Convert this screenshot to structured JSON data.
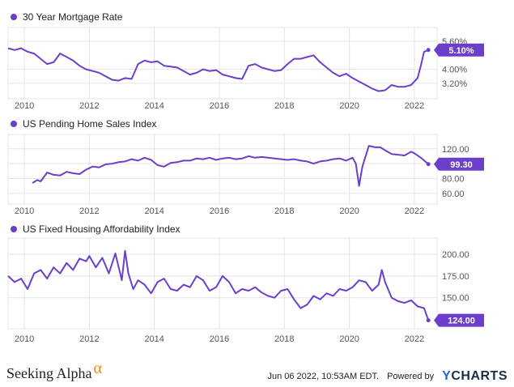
{
  "colors": {
    "series": "#6b3fc9",
    "grid": "#e4e4e4",
    "axis_text": "#555555",
    "badge_text": "#ffffff"
  },
  "chart_data": [
    {
      "type": "line",
      "legend": "30 Year Mortgage Rate",
      "current_label": "5.10%",
      "y_ticks": [
        "5.60%",
        "4.00%",
        "3.20%"
      ],
      "y_tick_values": [
        5.6,
        4.0,
        3.2
      ],
      "ylim": [
        2.5,
        6.2
      ],
      "x_ticks": [
        "2010",
        "2012",
        "2014",
        "2016",
        "2018",
        "2020",
        "2022"
      ],
      "x": [
        2009.5,
        2009.7,
        2009.9,
        2010.1,
        2010.3,
        2010.5,
        2010.7,
        2010.9,
        2011.1,
        2011.3,
        2011.5,
        2011.7,
        2011.9,
        2012.1,
        2012.3,
        2012.5,
        2012.7,
        2012.9,
        2013.1,
        2013.3,
        2013.5,
        2013.7,
        2013.9,
        2014.1,
        2014.3,
        2014.5,
        2014.7,
        2014.9,
        2015.1,
        2015.3,
        2015.5,
        2015.7,
        2015.9,
        2016.1,
        2016.3,
        2016.5,
        2016.7,
        2016.9,
        2017.1,
        2017.3,
        2017.5,
        2017.7,
        2017.9,
        2018.1,
        2018.3,
        2018.5,
        2018.7,
        2018.9,
        2019.1,
        2019.3,
        2019.5,
        2019.7,
        2019.9,
        2020.1,
        2020.3,
        2020.5,
        2020.7,
        2020.9,
        2021.1,
        2021.3,
        2021.5,
        2021.7,
        2021.9,
        2022.1,
        2022.2,
        2022.3,
        2022.43
      ],
      "values": [
        5.2,
        5.1,
        5.2,
        5.0,
        4.9,
        4.6,
        4.3,
        4.4,
        4.9,
        4.7,
        4.5,
        4.2,
        4.0,
        3.9,
        3.8,
        3.6,
        3.4,
        3.35,
        3.5,
        3.45,
        4.3,
        4.5,
        4.4,
        4.45,
        4.2,
        4.15,
        4.1,
        3.9,
        3.7,
        3.8,
        4.0,
        3.9,
        3.95,
        3.7,
        3.6,
        3.5,
        3.45,
        4.2,
        4.3,
        4.1,
        4.0,
        3.9,
        3.95,
        4.3,
        4.6,
        4.6,
        4.7,
        4.8,
        4.4,
        4.1,
        3.8,
        3.6,
        3.75,
        3.5,
        3.3,
        3.1,
        2.9,
        2.75,
        2.8,
        3.1,
        3.0,
        3.0,
        3.1,
        3.5,
        4.2,
        5.0,
        5.1
      ],
      "xlim": [
        2009.5,
        2022.7
      ]
    },
    {
      "type": "line",
      "legend": "US Pending Home Sales Index",
      "current_label": "99.30",
      "y_ticks": [
        "120.00",
        "100.00",
        "80.00",
        "60.00"
      ],
      "y_tick_values": [
        120,
        100,
        80,
        60
      ],
      "ylim": [
        50,
        135
      ],
      "x_ticks": [
        "2010",
        "2012",
        "2014",
        "2016",
        "2018",
        "2020",
        "2022"
      ],
      "x": [
        2010.25,
        2010.4,
        2010.5,
        2010.7,
        2010.9,
        2011.1,
        2011.3,
        2011.5,
        2011.7,
        2011.9,
        2012.1,
        2012.3,
        2012.5,
        2012.7,
        2012.9,
        2013.1,
        2013.3,
        2013.5,
        2013.7,
        2013.9,
        2014.1,
        2014.3,
        2014.5,
        2014.7,
        2014.9,
        2015.1,
        2015.3,
        2015.5,
        2015.7,
        2015.9,
        2016.1,
        2016.3,
        2016.5,
        2016.7,
        2016.9,
        2017.1,
        2017.3,
        2017.5,
        2017.7,
        2017.9,
        2018.1,
        2018.3,
        2018.5,
        2018.7,
        2018.9,
        2019.1,
        2019.3,
        2019.5,
        2019.7,
        2019.9,
        2020.1,
        2020.2,
        2020.3,
        2020.4,
        2020.5,
        2020.6,
        2020.8,
        2020.95,
        2021.1,
        2021.3,
        2021.5,
        2021.7,
        2021.9,
        2022.0,
        2022.2,
        2022.43
      ],
      "values": [
        74,
        78,
        76,
        88,
        85,
        84,
        89,
        87,
        86,
        92,
        96,
        95,
        99,
        100,
        102,
        103,
        106,
        104,
        108,
        105,
        98,
        96,
        101,
        102,
        104,
        104,
        107,
        106,
        108,
        105,
        107,
        108,
        106,
        107,
        110,
        108,
        109,
        108,
        107,
        106,
        105,
        106,
        104,
        103,
        100,
        103,
        104,
        106,
        107,
        104,
        108,
        100,
        70,
        96,
        110,
        124,
        122,
        122,
        118,
        113,
        112,
        111,
        116,
        114,
        108,
        99.3
      ],
      "xlim": [
        2009.5,
        2022.7
      ]
    },
    {
      "type": "line",
      "legend": "US Fixed Housing Affordability Index",
      "current_label": "124.00",
      "y_ticks": [
        "200.00",
        "175.00",
        "150.00"
      ],
      "y_tick_values": [
        200,
        175,
        150
      ],
      "ylim": [
        118,
        215
      ],
      "x_ticks": [
        "2010",
        "2012",
        "2014",
        "2016",
        "2018",
        "2020",
        "2022"
      ],
      "x": [
        2009.5,
        2009.7,
        2009.9,
        2010.1,
        2010.3,
        2010.5,
        2010.7,
        2010.9,
        2011.1,
        2011.3,
        2011.5,
        2011.7,
        2011.9,
        2012.0,
        2012.2,
        2012.4,
        2012.6,
        2012.8,
        2013.0,
        2013.1,
        2013.2,
        2013.35,
        2013.5,
        2013.7,
        2013.9,
        2014.1,
        2014.3,
        2014.5,
        2014.7,
        2014.9,
        2015.1,
        2015.3,
        2015.5,
        2015.7,
        2015.9,
        2016.1,
        2016.3,
        2016.5,
        2016.7,
        2016.9,
        2017.1,
        2017.3,
        2017.5,
        2017.7,
        2017.9,
        2018.1,
        2018.3,
        2018.5,
        2018.7,
        2018.9,
        2019.1,
        2019.3,
        2019.5,
        2019.7,
        2019.9,
        2020.1,
        2020.3,
        2020.5,
        2020.7,
        2020.9,
        2021.0,
        2021.1,
        2021.3,
        2021.5,
        2021.7,
        2021.9,
        2022.1,
        2022.3,
        2022.43
      ],
      "values": [
        175,
        168,
        172,
        160,
        178,
        182,
        172,
        185,
        178,
        190,
        182,
        195,
        192,
        198,
        185,
        196,
        178,
        201,
        170,
        204,
        178,
        160,
        170,
        165,
        155,
        168,
        172,
        160,
        158,
        165,
        162,
        175,
        170,
        158,
        162,
        175,
        168,
        155,
        160,
        158,
        162,
        156,
        152,
        150,
        158,
        160,
        148,
        138,
        142,
        152,
        148,
        155,
        152,
        160,
        158,
        162,
        170,
        168,
        158,
        165,
        182,
        168,
        150,
        146,
        144,
        147,
        140,
        138,
        124
      ],
      "xlim": [
        2009.5,
        2022.7
      ]
    }
  ],
  "footer": {
    "brand": "Seeking Alpha",
    "brand_mark": "α",
    "timestamp": "Jun 06 2022, 10:53AM EDT.",
    "powered": "Powered by",
    "ycharts_y": "Y",
    "ycharts_rest": "CHARTS"
  }
}
